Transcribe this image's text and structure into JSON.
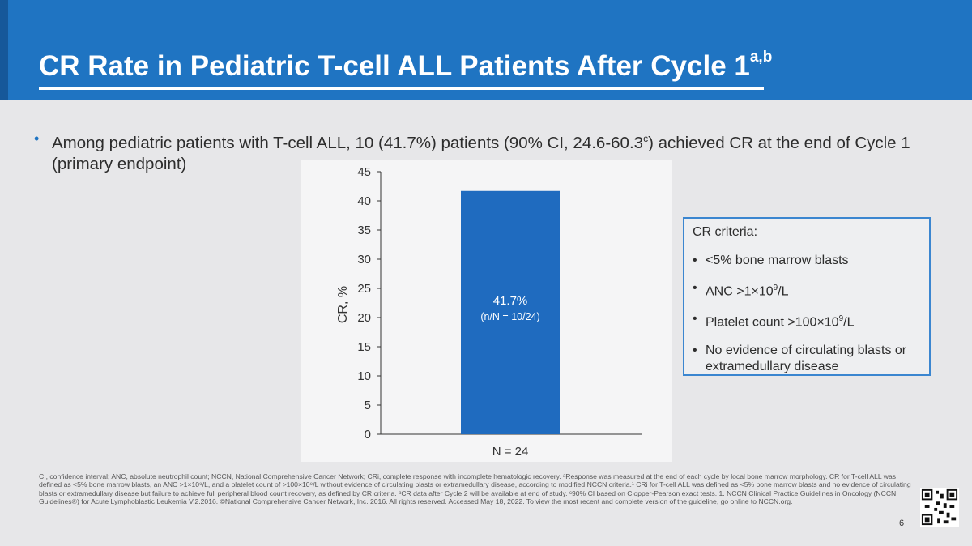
{
  "slide": {
    "title": "CR Rate in Pediatric T-cell ALL Patients After Cycle 1",
    "title_superscript": "a,b",
    "bullet_pre": "Among pediatric patients with T-cell ALL, 10 (41.7%) patients (90% CI, 24.6-60.3",
    "bullet_sup": "c",
    "bullet_post": ") achieved CR at the end of Cycle 1 (primary endpoint)",
    "page_number": "6"
  },
  "criteria": {
    "heading": "CR criteria:",
    "items": [
      {
        "pre": "<5% bone marrow blasts",
        "sup": "",
        "post": ""
      },
      {
        "pre": "ANC >1×10",
        "sup": "9",
        "post": "/L"
      },
      {
        "pre": "Platelet count >100×10",
        "sup": "9",
        "post": "/L"
      },
      {
        "pre": "No evidence of circulating blasts or extramedullary disease",
        "sup": "",
        "post": ""
      }
    ]
  },
  "footnote": "CI, confidence interval; ANC, absolute neutrophil count; NCCN, National Comprehensive Cancer Network; CRi, complete response with incomplete hematologic recovery. ᵃResponse was measured at the end of each cycle by local bone marrow morphology. CR for T-cell ALL was defined as <5% bone marrow blasts, an ANC >1×10⁹/L, and a platelet count of >100×10⁹/L without evidence of circulating blasts or extramedullary disease, according to modified NCCN criteria.¹ CRi for T-cell ALL was defined as <5% bone marrow blasts and no evidence of circulating blasts or extramedullary disease but failure to achieve full peripheral blood count recovery, as defined by CR criteria. ᵇCR data after Cycle 2 will be available at end of study. ᶜ90% CI based on Clopper-Pearson exact tests. 1. NCCN Clinical Practice Guidelines in Oncology (NCCN Guidelines®) for Acute Lymphoblastic Leukemia V.2.2016. ©National Comprehensive Cancer Network, Inc. 2016. All rights reserved. Accessed May 18, 2022. To view the most recent and complete version of the guideline, go online to NCCN.org.",
  "colors": {
    "header": "#1f74c2",
    "bar": "#1f6bbf",
    "accent": "#3b86d0"
  },
  "chart_data": {
    "type": "bar",
    "categories": [
      "N = 24"
    ],
    "values": [
      41.7
    ],
    "value_labels": [
      "41.7%"
    ],
    "value_sublabels": [
      "(n/N = 10/24)"
    ],
    "ylabel": "CR, %",
    "xlabel": "",
    "ylim": [
      0,
      45
    ],
    "yticks": [
      0,
      5,
      10,
      15,
      20,
      25,
      30,
      35,
      40,
      45
    ],
    "grid": false
  }
}
